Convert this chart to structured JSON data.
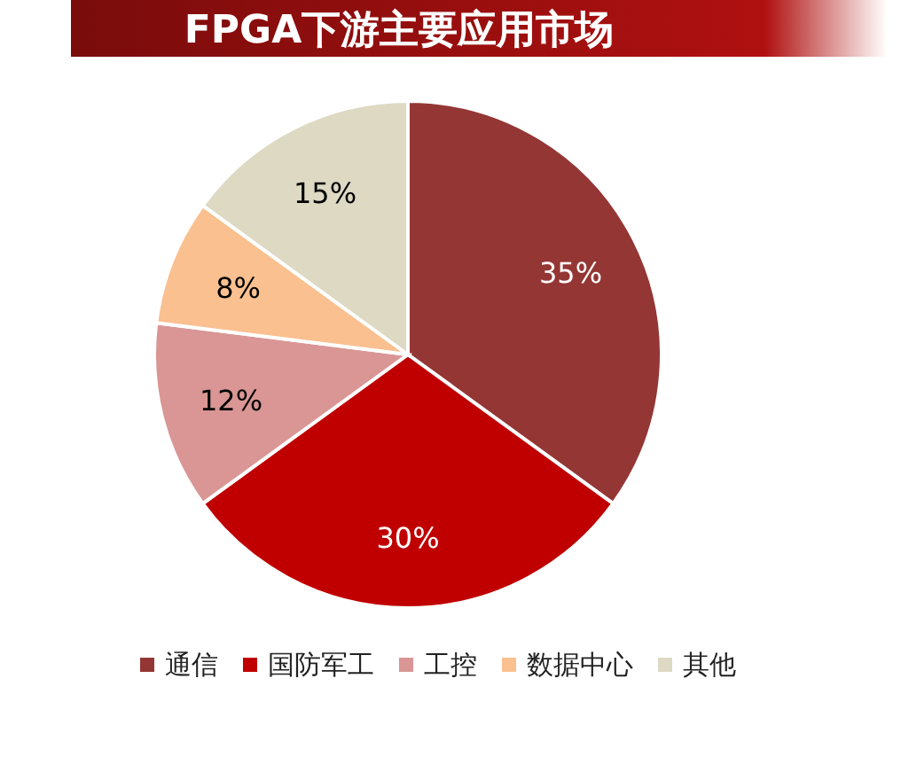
{
  "chart_data": {
    "type": "pie",
    "title": "FPGA下游主要应用市场",
    "categories": [
      "通信",
      "国防军工",
      "工控",
      "数据中心",
      "其他"
    ],
    "values": [
      35,
      30,
      12,
      8,
      15
    ],
    "colors": [
      "#943634",
      "#c00000",
      "#d99694",
      "#fac090",
      "#ddd9c3"
    ],
    "value_labels": [
      "35%",
      "30%",
      "12%",
      "8%",
      "15%"
    ],
    "legend": "bottom"
  }
}
